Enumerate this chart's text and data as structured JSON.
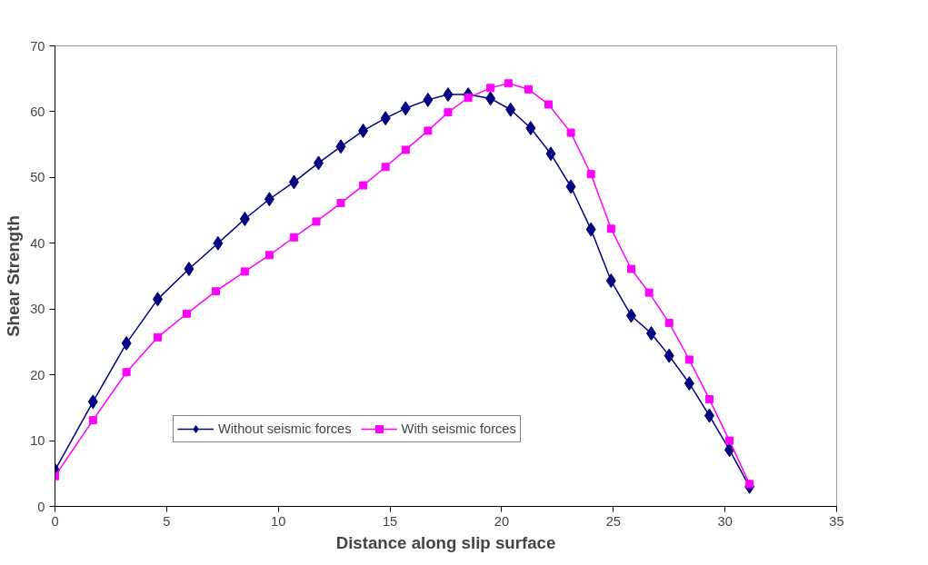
{
  "chart_data": {
    "type": "line",
    "xlabel": "Distance along slip surface",
    "ylabel": "Shear Strength",
    "xlim": [
      0,
      35
    ],
    "xticks": [
      0,
      5,
      10,
      15,
      20,
      25,
      30,
      35
    ],
    "ylim": [
      0,
      70
    ],
    "yticks": [
      0,
      10,
      20,
      30,
      40,
      50,
      60,
      70
    ],
    "grid": false,
    "legend": "bottom",
    "series": [
      {
        "name": "Without seismic forces",
        "color": "#000080",
        "marker": "diamond",
        "x": [
          0,
          1.7,
          3.2,
          4.6,
          6.0,
          7.3,
          8.5,
          9.6,
          10.7,
          11.8,
          12.8,
          13.8,
          14.8,
          15.7,
          16.7,
          17.6,
          18.5,
          19.5,
          20.4,
          21.3,
          22.2,
          23.1,
          24.0,
          24.9,
          25.8,
          26.7,
          27.5,
          28.4,
          29.3,
          30.2,
          31.1
        ],
        "values": [
          5.5,
          15.9,
          24.8,
          31.5,
          36.1,
          40.0,
          43.7,
          46.7,
          49.3,
          52.2,
          54.7,
          57.1,
          59.0,
          60.5,
          61.8,
          62.6,
          62.6,
          62.0,
          60.3,
          57.5,
          53.6,
          48.6,
          42.1,
          34.3,
          29.0,
          26.3,
          22.9,
          18.7,
          13.8,
          8.6,
          3.0
        ]
      },
      {
        "name": "With seismic forces",
        "color": "#ff00ff",
        "marker": "square",
        "x": [
          0,
          1.7,
          3.2,
          4.6,
          5.9,
          7.2,
          8.5,
          9.6,
          10.7,
          11.7,
          12.8,
          13.8,
          14.8,
          15.7,
          16.7,
          17.6,
          18.5,
          19.5,
          20.3,
          21.2,
          22.1,
          23.1,
          24.0,
          24.9,
          25.8,
          26.6,
          27.5,
          28.4,
          29.3,
          30.2,
          31.1
        ],
        "values": [
          4.6,
          13.1,
          20.4,
          25.7,
          29.3,
          32.7,
          35.7,
          38.2,
          40.9,
          43.3,
          46.1,
          48.8,
          51.6,
          54.2,
          57.1,
          59.9,
          62.1,
          63.6,
          64.3,
          63.4,
          61.1,
          56.8,
          50.5,
          42.2,
          36.1,
          32.5,
          27.9,
          22.3,
          16.3,
          10.0,
          3.4
        ]
      }
    ]
  }
}
